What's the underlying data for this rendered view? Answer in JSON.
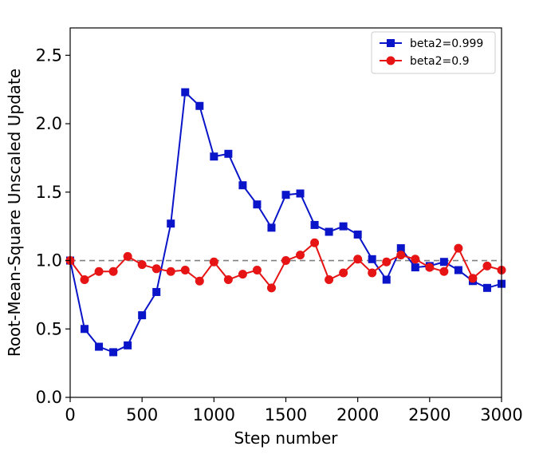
{
  "chart_data": {
    "type": "line",
    "title": "",
    "xlabel": "Step number",
    "ylabel": "Root-Mean-Square Unscaled Update",
    "xlim": [
      0,
      3000
    ],
    "ylim": [
      0,
      2.7
    ],
    "xticks": [
      0,
      500,
      1000,
      1500,
      2000,
      2500,
      3000
    ],
    "xtick_labels": [
      "0",
      "500",
      "1000",
      "1500",
      "2000",
      "2500",
      "3000"
    ],
    "yticks": [
      0,
      0.5,
      1.0,
      1.5,
      2.0,
      2.5
    ],
    "ytick_labels": [
      "0.0",
      "0.5",
      "1.0",
      "1.5",
      "2.0",
      "2.5"
    ],
    "grid": false,
    "legend_position": "top-right",
    "reference_line": {
      "y": 1.0,
      "style": "dashed",
      "color": "#808080"
    },
    "x": [
      0,
      100,
      200,
      300,
      400,
      500,
      600,
      700,
      800,
      900,
      1000,
      1100,
      1200,
      1300,
      1400,
      1500,
      1600,
      1700,
      1800,
      1900,
      2000,
      2100,
      2200,
      2300,
      2400,
      2500,
      2600,
      2700,
      2800,
      2900,
      3000
    ],
    "series": [
      {
        "name": "beta2=0.999",
        "color": "#0a14c8",
        "marker": "square",
        "values": [
          1.0,
          0.5,
          0.37,
          0.33,
          0.38,
          0.6,
          0.77,
          1.27,
          2.23,
          2.13,
          1.76,
          1.78,
          1.55,
          1.41,
          1.24,
          1.48,
          1.49,
          1.26,
          1.21,
          1.25,
          1.19,
          1.01,
          0.86,
          1.09,
          0.95,
          0.96,
          0.99,
          0.93,
          0.85,
          0.8,
          0.83
        ]
      },
      {
        "name": "beta2=0.9",
        "color": "#e61414",
        "marker": "circle",
        "values": [
          1.0,
          0.86,
          0.92,
          0.92,
          1.03,
          0.97,
          0.94,
          0.92,
          0.93,
          0.85,
          0.99,
          0.86,
          0.9,
          0.93,
          0.8,
          1.0,
          1.04,
          1.13,
          0.86,
          0.91,
          1.01,
          0.91,
          0.99,
          1.04,
          1.01,
          0.95,
          0.92,
          1.09,
          0.87,
          0.96,
          0.93
        ]
      }
    ]
  }
}
